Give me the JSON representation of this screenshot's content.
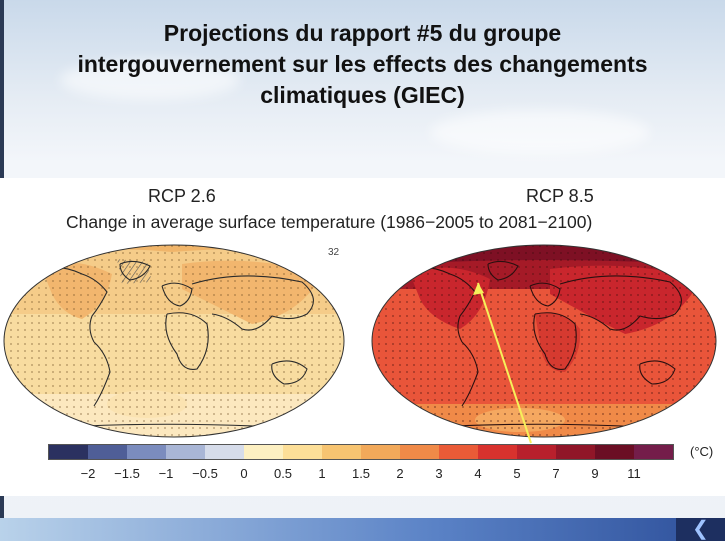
{
  "slide": {
    "title_lines": [
      "Projections du rapport #5 du groupe",
      "intergouvernement sur les effects des changements",
      "climatiques (GIEC)"
    ]
  },
  "figure": {
    "left_panel_title": "RCP 2.6",
    "right_panel_title": "RCP 8.5",
    "subtitle": "Change in average surface temperature (1986−2005 to 2081−2100)",
    "left_panel_number": "32",
    "colorbar": {
      "unit": "(°C)",
      "tick_labels": [
        "−2",
        "−1.5",
        "−1",
        "−0.5",
        "0",
        "0.5",
        "1",
        "1.5",
        "2",
        "3",
        "4",
        "5",
        "7",
        "9",
        "11"
      ],
      "colors": [
        "#2b3160",
        "#4f5e97",
        "#7b8cbe",
        "#a9b6d6",
        "#d6dcea",
        "#fdf0c2",
        "#fddf98",
        "#f7c471",
        "#f2a95a",
        "#f08a48",
        "#ea5b37",
        "#d8322e",
        "#b8202c",
        "#901628",
        "#6b0e24",
        "#741d4a"
      ]
    },
    "annotation": {
      "arrow_color": "#f6f05a"
    }
  },
  "nav": {
    "prev_icon": "chevron-double-left-icon",
    "glyph": "❮"
  }
}
